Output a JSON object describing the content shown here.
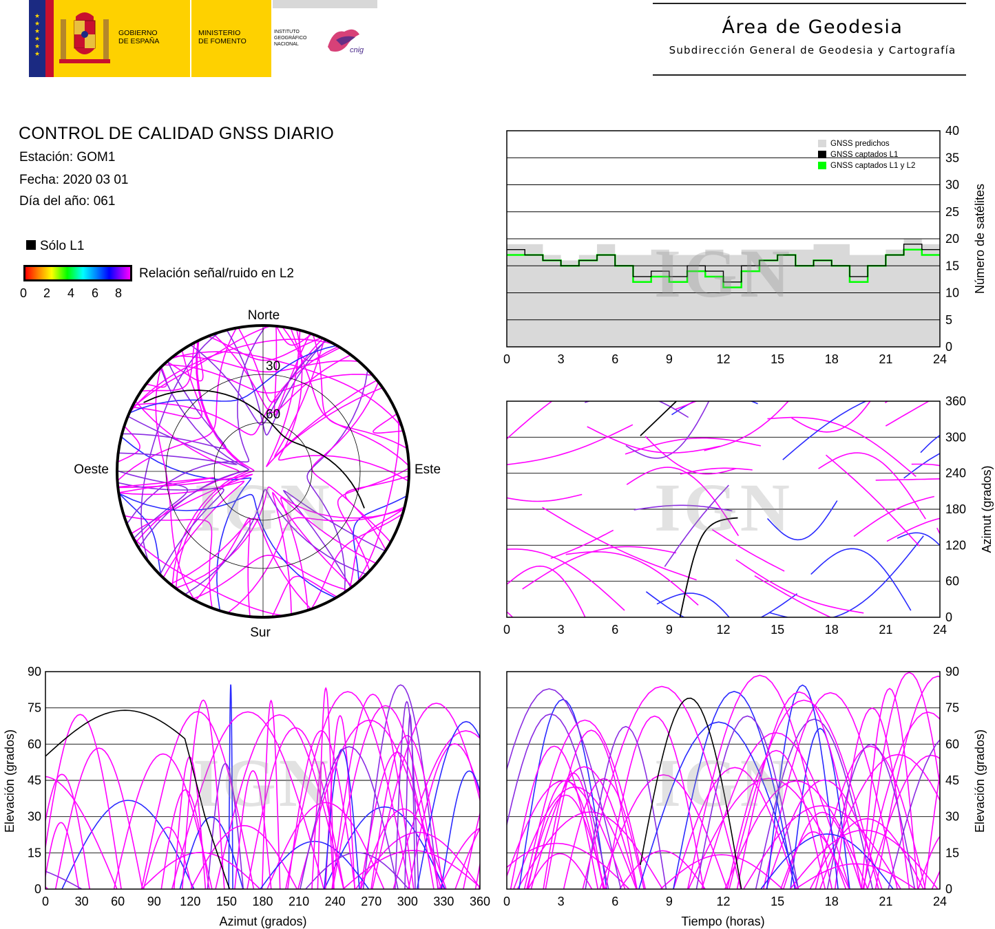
{
  "header": {
    "gov_line1": "GOBIERNO",
    "gov_line2": "DE ESPAÑA",
    "min_line1": "MINISTERIO",
    "min_line2": "DE FOMENTO",
    "inst_line1": "INSTITUTO",
    "inst_line2": "GEOGRÁFICO",
    "inst_line3": "NACIONAL",
    "cnig": "cnig",
    "area_title": "Área de Geodesia",
    "area_subtitle": "Subdirección General de Geodesia y Cartografía"
  },
  "report": {
    "title": "CONTROL DE CALIDAD GNSS DIARIO",
    "station": "Estación: GOM1",
    "date": "Fecha: 2020 03 01",
    "doy": "Día del año: 061"
  },
  "legend": {
    "l1_only": "Sólo L1",
    "snr_label": "Relación señal/ruido en L2",
    "snr_ticks": [
      "0",
      "2",
      "4",
      "6",
      "8"
    ]
  },
  "watermark": "IGN",
  "colors": {
    "magenta": "#ff00ff",
    "blue": "#2a2aff",
    "purple": "#8a2be2",
    "green": "#00ff00",
    "black": "#000000",
    "predicted_gray": "#d9d9d9"
  },
  "chart_data": [
    {
      "id": "skyplot",
      "type": "scatter",
      "projection": "polar",
      "direction_labels": {
        "north": "Norte",
        "south": "Sur",
        "east": "Este",
        "west": "Oeste"
      },
      "ring_labels": [
        "30",
        "60"
      ],
      "rings": [
        30,
        60
      ],
      "series": []
    },
    {
      "id": "sat_count",
      "type": "area",
      "title": "",
      "ylabel": "Número de satélites",
      "xlim": [
        0,
        24
      ],
      "ylim": [
        0,
        40
      ],
      "xticks": [
        "0",
        "3",
        "6",
        "9",
        "12",
        "15",
        "18",
        "21",
        "24"
      ],
      "yticks": [
        "0",
        "5",
        "10",
        "15",
        "20",
        "25",
        "30",
        "35",
        "40"
      ],
      "grid": true,
      "legend_position": "top-right",
      "legend": [
        "GNSS predichos",
        "GNSS captados L1",
        "GNSS captados L1 y L2"
      ],
      "x": [
        0,
        1,
        2,
        3,
        4,
        5,
        6,
        7,
        8,
        9,
        10,
        11,
        12,
        13,
        14,
        15,
        16,
        17,
        18,
        19,
        20,
        21,
        22,
        23,
        24
      ],
      "series": [
        {
          "name": "GNSS predichos",
          "values": [
            19,
            19,
            17,
            16,
            17,
            19,
            17,
            17,
            18,
            17,
            17,
            18,
            17,
            18,
            18,
            18,
            18,
            19,
            19,
            17,
            17,
            18,
            20,
            19,
            19
          ]
        },
        {
          "name": "GNSS captados L1",
          "values": [
            18,
            17,
            16,
            15,
            16,
            17,
            15,
            13,
            14,
            13,
            15,
            14,
            12,
            15,
            16,
            17,
            15,
            16,
            15,
            13,
            15,
            17,
            19,
            18,
            18
          ]
        },
        {
          "name": "GNSS captados L1 y L2",
          "values": [
            17,
            17,
            16,
            15,
            16,
            17,
            15,
            12,
            13,
            12,
            14,
            13,
            11,
            14,
            16,
            17,
            15,
            16,
            15,
            12,
            15,
            17,
            18,
            17,
            17
          ]
        }
      ]
    },
    {
      "id": "azimut_time",
      "type": "scatter",
      "ylabel": "Azimut (grados)",
      "xlim": [
        0,
        24
      ],
      "ylim": [
        0,
        360
      ],
      "xticks": [
        "0",
        "3",
        "6",
        "9",
        "12",
        "15",
        "18",
        "21",
        "24"
      ],
      "yticks": [
        "0",
        "60",
        "120",
        "180",
        "240",
        "300",
        "360"
      ],
      "grid": true,
      "series": []
    },
    {
      "id": "elev_azimut",
      "type": "scatter",
      "xlabel": "Azimut (grados)",
      "ylabel": "Elevación (grados)",
      "xlim": [
        0,
        360
      ],
      "ylim": [
        0,
        90
      ],
      "xticks": [
        "0",
        "30",
        "60",
        "90",
        "120",
        "150",
        "180",
        "210",
        "240",
        "270",
        "300",
        "330",
        "360"
      ],
      "yticks": [
        "0",
        "15",
        "30",
        "45",
        "60",
        "75",
        "90"
      ],
      "grid": true,
      "series": []
    },
    {
      "id": "elev_time",
      "type": "scatter",
      "xlabel": "Tiempo (horas)",
      "ylabel": "Elevación (grados)",
      "xlim": [
        0,
        24
      ],
      "ylim": [
        0,
        90
      ],
      "xticks": [
        "0",
        "3",
        "6",
        "9",
        "12",
        "15",
        "18",
        "21",
        "24"
      ],
      "yticks": [
        "0",
        "15",
        "30",
        "45",
        "60",
        "75",
        "90"
      ],
      "grid": true,
      "series": []
    }
  ]
}
